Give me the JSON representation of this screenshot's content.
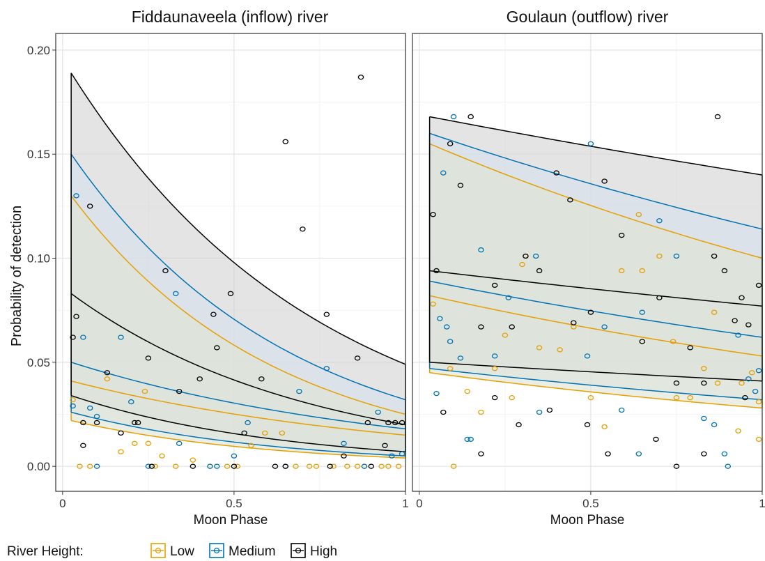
{
  "figure": {
    "ylabel": "Probability of detection",
    "legend": {
      "title": "River Height:",
      "items": [
        {
          "label": "Low",
          "color": "#E69F00"
        },
        {
          "label": "Medium",
          "color": "#0072B2"
        },
        {
          "label": "High",
          "color": "#000000"
        }
      ],
      "placement": "bottom-left"
    }
  },
  "chart_data": [
    {
      "type": "line",
      "title": "Fiddaunaveela (inflow) river",
      "xlabel": "Moon Phase",
      "ylabel": "Probability of detection",
      "xlim": [
        -0.02,
        1.0
      ],
      "ylim": [
        -0.012,
        0.208
      ],
      "xticks": [
        {
          "value": 0,
          "label": "0"
        },
        {
          "value": 0.5,
          "label": "0.5"
        },
        {
          "value": 1,
          "label": "1"
        }
      ],
      "yticks": [
        {
          "value": 0,
          "label": "0.00"
        },
        {
          "value": 0.05,
          "label": "0.05"
        },
        {
          "value": 0.1,
          "label": "0.10"
        },
        {
          "value": 0.15,
          "label": "0.15"
        },
        {
          "value": 0.2,
          "label": "0.20"
        }
      ],
      "grid": true,
      "series": [
        {
          "name": "Low",
          "color": "#E69F00",
          "fill": "#dfe4d4",
          "x_range": [
            0.025,
            1.0
          ],
          "fit": [
            0.041,
            0.015
          ],
          "lower": [
            0.022,
            0.004
          ],
          "upper": [
            0.13,
            0.025
          ]
        },
        {
          "name": "Medium",
          "color": "#0072B2",
          "fill": "#d6e0ec",
          "x_range": [
            0.025,
            1.0
          ],
          "fit": [
            0.05,
            0.018
          ],
          "lower": [
            0.026,
            0.005
          ],
          "upper": [
            0.15,
            0.032
          ]
        },
        {
          "name": "High",
          "color": "#000000",
          "fill": "#d4d4d4",
          "x_range": [
            0.025,
            1.0
          ],
          "fit": [
            0.083,
            0.02
          ],
          "lower": [
            0.034,
            0.007
          ],
          "upper": [
            0.189,
            0.049
          ]
        }
      ],
      "points": {
        "Low": [
          [
            0.03,
            0.032
          ],
          [
            0.05,
            0.0
          ],
          [
            0.08,
            0.0
          ],
          [
            0.13,
            0.042
          ],
          [
            0.17,
            0.007
          ],
          [
            0.21,
            0.011
          ],
          [
            0.24,
            0.036
          ],
          [
            0.25,
            0.011
          ],
          [
            0.27,
            0.0
          ],
          [
            0.29,
            0.005
          ],
          [
            0.33,
            0.0
          ],
          [
            0.38,
            0.003
          ],
          [
            0.43,
            0.0
          ],
          [
            0.48,
            0.0
          ],
          [
            0.51,
            0.0
          ],
          [
            0.55,
            0.01
          ],
          [
            0.59,
            0.016
          ],
          [
            0.64,
            0.016
          ],
          [
            0.68,
            0.0
          ],
          [
            0.72,
            0.0
          ],
          [
            0.74,
            0.0
          ],
          [
            0.79,
            0.0
          ],
          [
            0.83,
            0.0
          ],
          [
            0.86,
            0.0
          ],
          [
            0.88,
            0.0
          ],
          [
            0.93,
            0.0
          ],
          [
            0.95,
            0.0
          ],
          [
            0.98,
            0.0
          ]
        ],
        "Medium": [
          [
            0.03,
            0.029
          ],
          [
            0.04,
            0.13
          ],
          [
            0.06,
            0.062
          ],
          [
            0.08,
            0.028
          ],
          [
            0.1,
            0.024
          ],
          [
            0.1,
            0.0
          ],
          [
            0.17,
            0.062
          ],
          [
            0.2,
            0.031
          ],
          [
            0.25,
            0.0
          ],
          [
            0.33,
            0.083
          ],
          [
            0.34,
            0.011
          ],
          [
            0.43,
            0.0
          ],
          [
            0.45,
            0.0
          ],
          [
            0.5,
            0.005
          ],
          [
            0.54,
            0.021
          ],
          [
            0.65,
            0.0
          ],
          [
            0.69,
            0.036
          ],
          [
            0.77,
            0.047
          ],
          [
            0.82,
            0.011
          ],
          [
            0.88,
            0.0
          ],
          [
            0.92,
            0.026
          ],
          [
            0.96,
            0.005
          ],
          [
            0.99,
            0.006
          ]
        ],
        "High": [
          [
            0.03,
            0.062
          ],
          [
            0.04,
            0.072
          ],
          [
            0.06,
            0.021
          ],
          [
            0.06,
            0.01
          ],
          [
            0.08,
            0.125
          ],
          [
            0.1,
            0.021
          ],
          [
            0.13,
            0.045
          ],
          [
            0.17,
            0.016
          ],
          [
            0.21,
            0.021
          ],
          [
            0.22,
            0.021
          ],
          [
            0.25,
            0.052
          ],
          [
            0.26,
            0.0
          ],
          [
            0.3,
            0.094
          ],
          [
            0.34,
            0.036
          ],
          [
            0.38,
            0.0
          ],
          [
            0.4,
            0.042
          ],
          [
            0.44,
            0.073
          ],
          [
            0.45,
            0.057
          ],
          [
            0.49,
            0.083
          ],
          [
            0.5,
            0.0
          ],
          [
            0.53,
            0.016
          ],
          [
            0.58,
            0.042
          ],
          [
            0.62,
            0.0
          ],
          [
            0.65,
            0.156
          ],
          [
            0.65,
            0.0
          ],
          [
            0.7,
            0.114
          ],
          [
            0.77,
            0.073
          ],
          [
            0.78,
            0.0
          ],
          [
            0.82,
            0.005
          ],
          [
            0.86,
            0.052
          ],
          [
            0.87,
            0.187
          ],
          [
            0.89,
            0.021
          ],
          [
            0.9,
            0.0
          ],
          [
            0.94,
            0.01
          ],
          [
            0.95,
            0.021
          ],
          [
            0.97,
            0.021
          ],
          [
            0.99,
            0.021
          ]
        ]
      }
    },
    {
      "type": "line",
      "title": "Goulaun (outflow) river",
      "xlabel": "Moon Phase",
      "ylim": [
        -0.012,
        0.208
      ],
      "xlim": [
        -0.02,
        1.0
      ],
      "xticks": [
        {
          "value": 0,
          "label": "0"
        },
        {
          "value": 0.5,
          "label": "0.5"
        },
        {
          "value": 1,
          "label": "1"
        }
      ],
      "grid": true,
      "series": [
        {
          "name": "Low",
          "color": "#E69F00",
          "fill": "#dfe4d4",
          "x_range": [
            0.03,
            1.0
          ],
          "fit": [
            0.082,
            0.053
          ],
          "lower": [
            0.045,
            0.028
          ],
          "upper": [
            0.155,
            0.1
          ]
        },
        {
          "name": "Medium",
          "color": "#0072B2",
          "fill": "#d6e0ec",
          "x_range": [
            0.03,
            1.0
          ],
          "fit": [
            0.089,
            0.062
          ],
          "lower": [
            0.047,
            0.032
          ],
          "upper": [
            0.16,
            0.114
          ]
        },
        {
          "name": "High",
          "color": "#000000",
          "fill": "#d4d4d4",
          "x_range": [
            0.03,
            1.0
          ],
          "fit": [
            0.094,
            0.077
          ],
          "lower": [
            0.05,
            0.041
          ],
          "upper": [
            0.168,
            0.14
          ]
        }
      ],
      "points": {
        "Low": [
          [
            0.04,
            0.078
          ],
          [
            0.09,
            0.047
          ],
          [
            0.1,
            0.0
          ],
          [
            0.14,
            0.036
          ],
          [
            0.18,
            0.026
          ],
          [
            0.22,
            0.047
          ],
          [
            0.25,
            0.063
          ],
          [
            0.27,
            0.033
          ],
          [
            0.3,
            0.097
          ],
          [
            0.31,
            0.101
          ],
          [
            0.35,
            0.057
          ],
          [
            0.41,
            0.056
          ],
          [
            0.45,
            0.067
          ],
          [
            0.5,
            0.033
          ],
          [
            0.54,
            0.019
          ],
          [
            0.59,
            0.094
          ],
          [
            0.64,
            0.121
          ],
          [
            0.65,
            0.094
          ],
          [
            0.7,
            0.101
          ],
          [
            0.74,
            0.06
          ],
          [
            0.75,
            0.033
          ],
          [
            0.79,
            0.033
          ],
          [
            0.83,
            0.047
          ],
          [
            0.86,
            0.074
          ],
          [
            0.87,
            0.04
          ],
          [
            0.93,
            0.017
          ],
          [
            0.94,
            0.04
          ],
          [
            0.97,
            0.045
          ],
          [
            0.99,
            0.013
          ],
          [
            0.99,
            0.031
          ]
        ],
        "Medium": [
          [
            0.05,
            0.035
          ],
          [
            0.06,
            0.071
          ],
          [
            0.07,
            0.141
          ],
          [
            0.08,
            0.067
          ],
          [
            0.09,
            0.06
          ],
          [
            0.1,
            0.168
          ],
          [
            0.12,
            0.052
          ],
          [
            0.14,
            0.013
          ],
          [
            0.15,
            0.013
          ],
          [
            0.18,
            0.104
          ],
          [
            0.22,
            0.053
          ],
          [
            0.26,
            0.081
          ],
          [
            0.34,
            0.101
          ],
          [
            0.35,
            0.026
          ],
          [
            0.49,
            0.053
          ],
          [
            0.5,
            0.155
          ],
          [
            0.54,
            0.067
          ],
          [
            0.59,
            0.027
          ],
          [
            0.64,
            0.006
          ],
          [
            0.65,
            0.074
          ],
          [
            0.7,
            0.118
          ],
          [
            0.75,
            0.101
          ],
          [
            0.83,
            0.023
          ],
          [
            0.86,
            0.02
          ],
          [
            0.89,
            0.006
          ],
          [
            0.9,
            0.0
          ],
          [
            0.93,
            0.063
          ],
          [
            0.96,
            0.042
          ],
          [
            0.98,
            0.036
          ],
          [
            0.99,
            0.046
          ]
        ],
        "High": [
          [
            0.04,
            0.121
          ],
          [
            0.05,
            0.094
          ],
          [
            0.07,
            0.026
          ],
          [
            0.09,
            0.155
          ],
          [
            0.12,
            0.135
          ],
          [
            0.15,
            0.168
          ],
          [
            0.18,
            0.006
          ],
          [
            0.18,
            0.067
          ],
          [
            0.22,
            0.033
          ],
          [
            0.22,
            0.087
          ],
          [
            0.27,
            0.067
          ],
          [
            0.29,
            0.02
          ],
          [
            0.31,
            0.101
          ],
          [
            0.35,
            0.094
          ],
          [
            0.38,
            0.027
          ],
          [
            0.4,
            0.141
          ],
          [
            0.44,
            0.128
          ],
          [
            0.45,
            0.069
          ],
          [
            0.49,
            0.02
          ],
          [
            0.5,
            0.074
          ],
          [
            0.54,
            0.137
          ],
          [
            0.55,
            0.006
          ],
          [
            0.59,
            0.111
          ],
          [
            0.65,
            0.06
          ],
          [
            0.69,
            0.013
          ],
          [
            0.7,
            0.081
          ],
          [
            0.75,
            0.0
          ],
          [
            0.75,
            0.04
          ],
          [
            0.79,
            0.057
          ],
          [
            0.83,
            0.006
          ],
          [
            0.83,
            0.04
          ],
          [
            0.86,
            0.101
          ],
          [
            0.87,
            0.168
          ],
          [
            0.89,
            0.094
          ],
          [
            0.92,
            0.07
          ],
          [
            0.94,
            0.081
          ],
          [
            0.95,
            0.033
          ],
          [
            0.96,
            0.068
          ],
          [
            0.99,
            0.087
          ]
        ]
      }
    }
  ]
}
